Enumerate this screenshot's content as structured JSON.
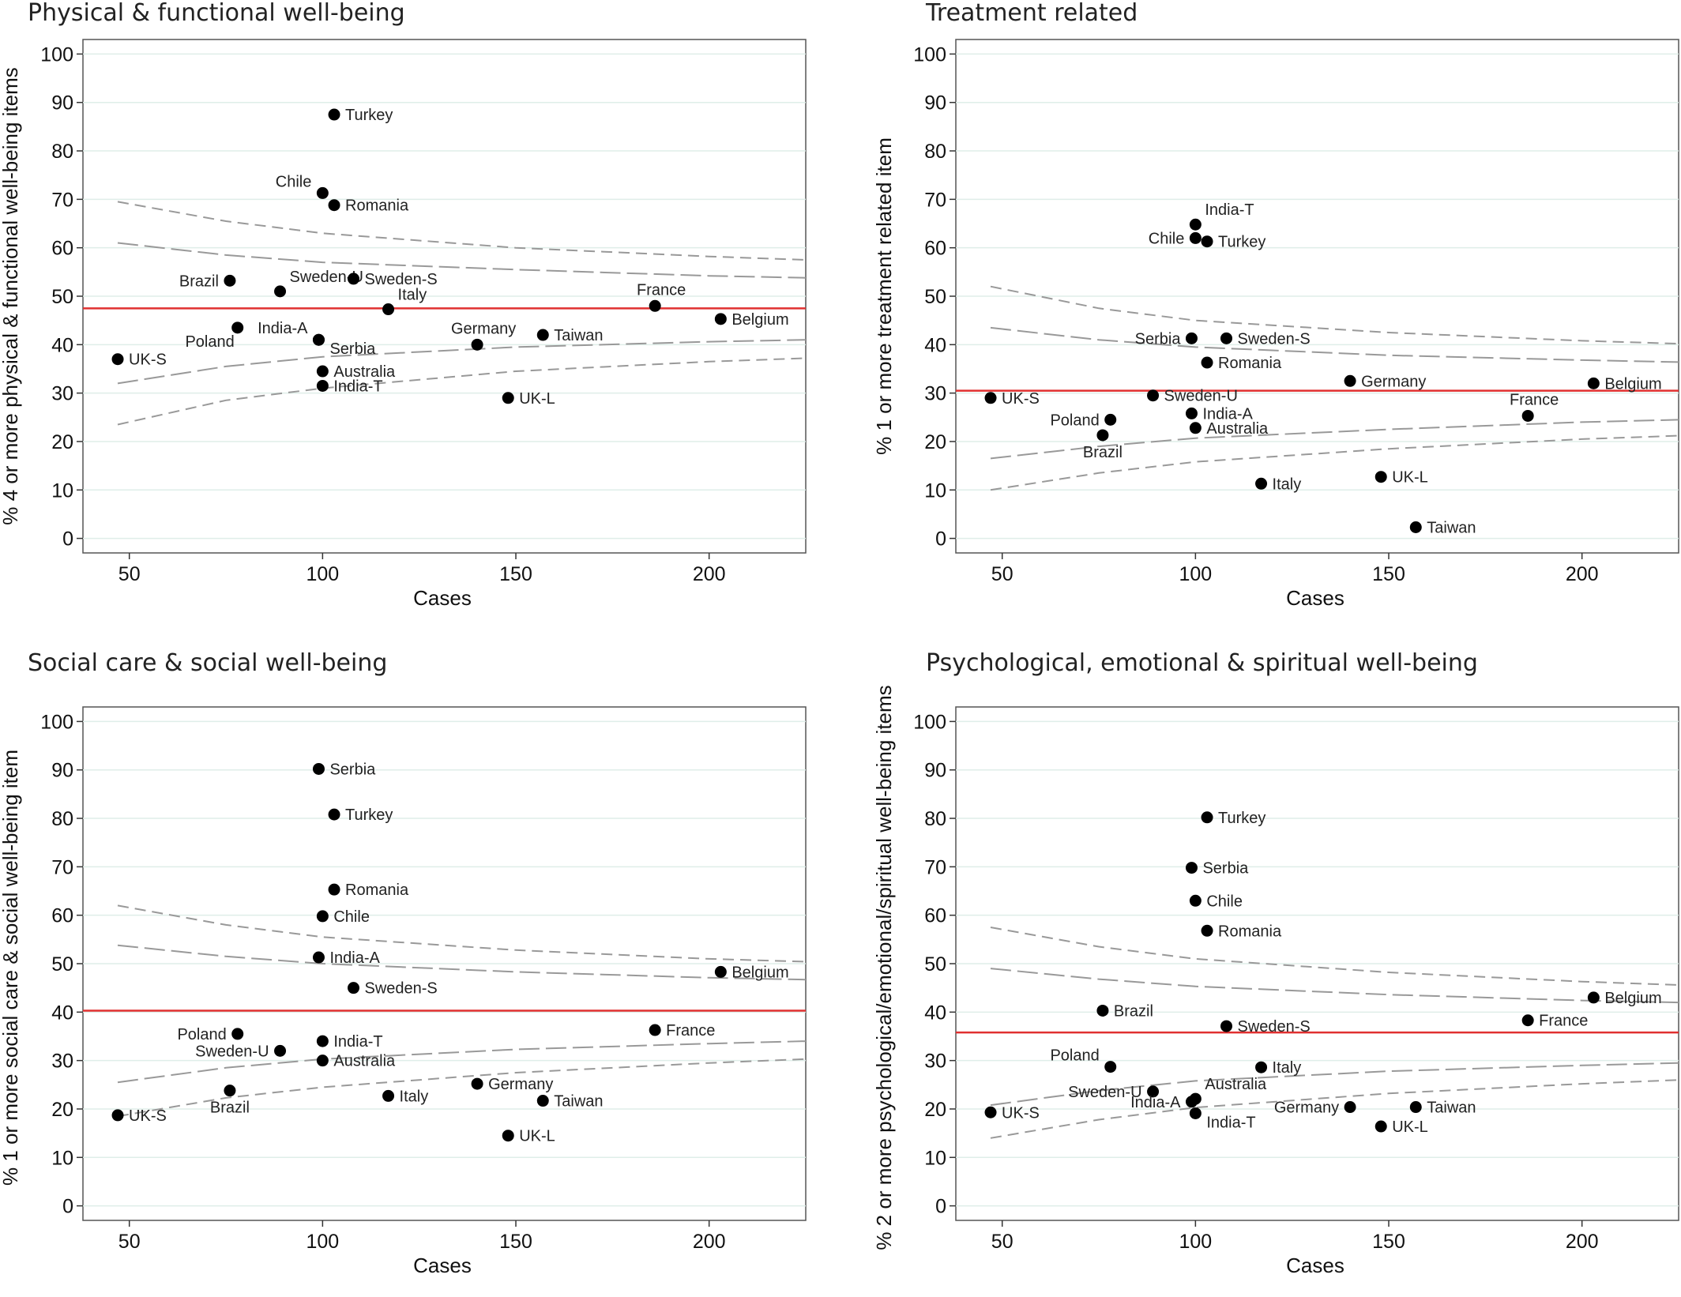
{
  "chart_data": [
    {
      "type": "scatter",
      "title": "Physical & functional well-being",
      "xlabel": "Cases",
      "ylabel": "% 4 or more physical & functional well-being items",
      "xlim": [
        38,
        225
      ],
      "ylim": [
        -3,
        103
      ],
      "xticks": [
        50,
        100,
        150,
        200
      ],
      "yticks": [
        0,
        10,
        20,
        30,
        40,
        50,
        60,
        70,
        80,
        90,
        100
      ],
      "grid": true,
      "reference_line": {
        "value": 47.5,
        "color": "#e03030"
      },
      "control_limits": {
        "inner_upper": [
          [
            47,
            61
          ],
          [
            75,
            58.5
          ],
          [
            100,
            57
          ],
          [
            150,
            55.5
          ],
          [
            200,
            54.2
          ],
          [
            225,
            53.8
          ]
        ],
        "outer_upper": [
          [
            47,
            69.5
          ],
          [
            75,
            65.5
          ],
          [
            100,
            63
          ],
          [
            150,
            60
          ],
          [
            200,
            58.2
          ],
          [
            225,
            57.5
          ]
        ],
        "inner_lower": [
          [
            47,
            32
          ],
          [
            75,
            35.5
          ],
          [
            100,
            37.5
          ],
          [
            150,
            39.5
          ],
          [
            200,
            40.6
          ],
          [
            225,
            41
          ]
        ],
        "outer_lower": [
          [
            47,
            23.5
          ],
          [
            75,
            28.5
          ],
          [
            100,
            31
          ],
          [
            150,
            34.5
          ],
          [
            200,
            36.5
          ],
          [
            225,
            37.2
          ]
        ]
      },
      "points": [
        {
          "label": "Turkey",
          "x": 103,
          "y": 87.5,
          "side": "right"
        },
        {
          "label": "Chile",
          "x": 100,
          "y": 71.3,
          "side": "above-left"
        },
        {
          "label": "Romania",
          "x": 103,
          "y": 68.8,
          "side": "right"
        },
        {
          "label": "Brazil",
          "x": 76,
          "y": 53.2,
          "side": "left"
        },
        {
          "label": "Sweden-U",
          "x": 89,
          "y": 51,
          "side": "above-right"
        },
        {
          "label": "Sweden-S",
          "x": 108,
          "y": 53.6,
          "side": "right"
        },
        {
          "label": "Italy",
          "x": 117,
          "y": 47.3,
          "side": "above-right"
        },
        {
          "label": "France",
          "x": 186,
          "y": 48,
          "side": "above"
        },
        {
          "label": "Belgium",
          "x": 203,
          "y": 45.3,
          "side": "right"
        },
        {
          "label": "India-A",
          "x": 99,
          "y": 41,
          "side": "above-left"
        },
        {
          "label": "Poland",
          "x": 78,
          "y": 43.5,
          "side": "below-left"
        },
        {
          "label": "Serbia",
          "x": 99,
          "y": 41,
          "side": "below-right"
        },
        {
          "label": "Germany",
          "x": 140,
          "y": 40,
          "side": "above"
        },
        {
          "label": "Taiwan",
          "x": 157,
          "y": 42,
          "side": "right"
        },
        {
          "label": "UK-S",
          "x": 47,
          "y": 37,
          "side": "right"
        },
        {
          "label": "Australia",
          "x": 100,
          "y": 34.5,
          "side": "right"
        },
        {
          "label": "India-T",
          "x": 100,
          "y": 31.5,
          "side": "right"
        },
        {
          "label": "UK-L",
          "x": 148,
          "y": 29,
          "side": "right"
        }
      ]
    },
    {
      "type": "scatter",
      "title": "Treatment  related",
      "xlabel": "Cases",
      "ylabel": "% 1 or more treatment related item",
      "xlim": [
        38,
        225
      ],
      "ylim": [
        -3,
        103
      ],
      "xticks": [
        50,
        100,
        150,
        200
      ],
      "yticks": [
        0,
        10,
        20,
        30,
        40,
        50,
        60,
        70,
        80,
        90,
        100
      ],
      "grid": true,
      "reference_line": {
        "value": 30.5,
        "color": "#e03030"
      },
      "control_limits": {
        "inner_upper": [
          [
            47,
            43.5
          ],
          [
            75,
            41
          ],
          [
            100,
            39.5
          ],
          [
            150,
            37.8
          ],
          [
            200,
            36.8
          ],
          [
            225,
            36.4
          ]
        ],
        "outer_upper": [
          [
            47,
            52
          ],
          [
            75,
            47.5
          ],
          [
            100,
            45
          ],
          [
            150,
            42.5
          ],
          [
            200,
            40.8
          ],
          [
            225,
            40.2
          ]
        ],
        "inner_lower": [
          [
            47,
            16.5
          ],
          [
            75,
            19
          ],
          [
            100,
            20.7
          ],
          [
            150,
            22.5
          ],
          [
            200,
            24
          ],
          [
            225,
            24.5
          ]
        ],
        "outer_lower": [
          [
            47,
            10
          ],
          [
            75,
            13.5
          ],
          [
            100,
            15.8
          ],
          [
            150,
            18.5
          ],
          [
            200,
            20.5
          ],
          [
            225,
            21.2
          ]
        ]
      },
      "points": [
        {
          "label": "India-T",
          "x": 100,
          "y": 64.8,
          "side": "above-right"
        },
        {
          "label": "Chile",
          "x": 100,
          "y": 62,
          "side": "left"
        },
        {
          "label": "Turkey",
          "x": 103,
          "y": 61.3,
          "side": "right"
        },
        {
          "label": "Serbia",
          "x": 99,
          "y": 41.3,
          "side": "left"
        },
        {
          "label": "Sweden-S",
          "x": 108,
          "y": 41.3,
          "side": "right"
        },
        {
          "label": "Romania",
          "x": 103,
          "y": 36.3,
          "side": "right"
        },
        {
          "label": "Germany",
          "x": 140,
          "y": 32.5,
          "side": "right"
        },
        {
          "label": "Belgium",
          "x": 203,
          "y": 32,
          "side": "right"
        },
        {
          "label": "UK-S",
          "x": 47,
          "y": 29,
          "side": "right"
        },
        {
          "label": "Sweden-U",
          "x": 89,
          "y": 29.5,
          "side": "right"
        },
        {
          "label": "France",
          "x": 186,
          "y": 25.3,
          "side": "above"
        },
        {
          "label": "India-A",
          "x": 99,
          "y": 25.8,
          "side": "right"
        },
        {
          "label": "Poland",
          "x": 78,
          "y": 24.5,
          "side": "left"
        },
        {
          "label": "Australia",
          "x": 100,
          "y": 22.8,
          "side": "right"
        },
        {
          "label": "Brazil",
          "x": 76,
          "y": 21.3,
          "side": "below"
        },
        {
          "label": "UK-L",
          "x": 148,
          "y": 12.7,
          "side": "right"
        },
        {
          "label": "Italy",
          "x": 117,
          "y": 11.3,
          "side": "right"
        },
        {
          "label": "Taiwan",
          "x": 157,
          "y": 2.3,
          "side": "right"
        }
      ]
    },
    {
      "type": "scatter",
      "title": "Social care & social well-being",
      "xlabel": "Cases",
      "ylabel": "% 1 or more social care & social well-being item",
      "xlim": [
        38,
        225
      ],
      "ylim": [
        -3,
        103
      ],
      "xticks": [
        50,
        100,
        150,
        200
      ],
      "yticks": [
        0,
        10,
        20,
        30,
        40,
        50,
        60,
        70,
        80,
        90,
        100
      ],
      "grid": true,
      "reference_line": {
        "value": 40.3,
        "color": "#e03030"
      },
      "control_limits": {
        "inner_upper": [
          [
            47,
            53.8
          ],
          [
            75,
            51.5
          ],
          [
            100,
            50
          ],
          [
            150,
            48.3
          ],
          [
            200,
            47.1
          ],
          [
            225,
            46.7
          ]
        ],
        "outer_upper": [
          [
            47,
            62
          ],
          [
            75,
            58
          ],
          [
            100,
            55.5
          ],
          [
            150,
            52.8
          ],
          [
            200,
            51
          ],
          [
            225,
            50.4
          ]
        ],
        "inner_lower": [
          [
            47,
            25.5
          ],
          [
            75,
            28.5
          ],
          [
            100,
            30.3
          ],
          [
            150,
            32.3
          ],
          [
            200,
            33.5
          ],
          [
            225,
            34
          ]
        ],
        "outer_lower": [
          [
            47,
            18.5
          ],
          [
            75,
            22.3
          ],
          [
            100,
            24.5
          ],
          [
            150,
            27.5
          ],
          [
            200,
            29.5
          ],
          [
            225,
            30.3
          ]
        ]
      },
      "points": [
        {
          "label": "Serbia",
          "x": 99,
          "y": 90.2,
          "side": "right"
        },
        {
          "label": "Turkey",
          "x": 103,
          "y": 80.8,
          "side": "right"
        },
        {
          "label": "Romania",
          "x": 103,
          "y": 65.3,
          "side": "right"
        },
        {
          "label": "Chile",
          "x": 100,
          "y": 59.8,
          "side": "right"
        },
        {
          "label": "India-A",
          "x": 99,
          "y": 51.3,
          "side": "right"
        },
        {
          "label": "Belgium",
          "x": 203,
          "y": 48.3,
          "side": "right"
        },
        {
          "label": "Sweden-S",
          "x": 108,
          "y": 45,
          "side": "right"
        },
        {
          "label": "Poland",
          "x": 78,
          "y": 35.5,
          "side": "left"
        },
        {
          "label": "France",
          "x": 186,
          "y": 36.3,
          "side": "right"
        },
        {
          "label": "India-T",
          "x": 100,
          "y": 34,
          "side": "right"
        },
        {
          "label": "Sweden-U",
          "x": 89,
          "y": 32,
          "side": "left"
        },
        {
          "label": "Australia",
          "x": 100,
          "y": 30,
          "side": "right"
        },
        {
          "label": "Germany",
          "x": 140,
          "y": 25.2,
          "side": "right"
        },
        {
          "label": "Brazil",
          "x": 76,
          "y": 23.8,
          "side": "below"
        },
        {
          "label": "Italy",
          "x": 117,
          "y": 22.7,
          "side": "right"
        },
        {
          "label": "Taiwan",
          "x": 157,
          "y": 21.7,
          "side": "right"
        },
        {
          "label": "UK-S",
          "x": 47,
          "y": 18.7,
          "side": "right"
        },
        {
          "label": "UK-L",
          "x": 148,
          "y": 14.5,
          "side": "right"
        }
      ]
    },
    {
      "type": "scatter",
      "title": "Psychological, emotional & spiritual well-being",
      "xlabel": "Cases",
      "ylabel": "% 2 or more psychological/emotional/spiritual well-being items",
      "xlim": [
        38,
        225
      ],
      "ylim": [
        -3,
        103
      ],
      "xticks": [
        50,
        100,
        150,
        200
      ],
      "yticks": [
        0,
        10,
        20,
        30,
        40,
        50,
        60,
        70,
        80,
        90,
        100
      ],
      "grid": true,
      "reference_line": {
        "value": 35.8,
        "color": "#e03030"
      },
      "control_limits": {
        "inner_upper": [
          [
            47,
            49
          ],
          [
            75,
            46.8
          ],
          [
            100,
            45.3
          ],
          [
            150,
            43.6
          ],
          [
            200,
            42.4
          ],
          [
            225,
            42
          ]
        ],
        "outer_upper": [
          [
            47,
            57.5
          ],
          [
            75,
            53.5
          ],
          [
            100,
            51
          ],
          [
            150,
            48.2
          ],
          [
            200,
            46.3
          ],
          [
            225,
            45.6
          ]
        ],
        "inner_lower": [
          [
            47,
            20.8
          ],
          [
            75,
            23.8
          ],
          [
            100,
            25.8
          ],
          [
            150,
            27.8
          ],
          [
            200,
            29
          ],
          [
            225,
            29.5
          ]
        ],
        "outer_lower": [
          [
            47,
            14
          ],
          [
            75,
            17.8
          ],
          [
            100,
            20.3
          ],
          [
            150,
            23.2
          ],
          [
            200,
            25.2
          ],
          [
            225,
            26
          ]
        ]
      },
      "points": [
        {
          "label": "Turkey",
          "x": 103,
          "y": 80.2,
          "side": "right"
        },
        {
          "label": "Serbia",
          "x": 99,
          "y": 69.8,
          "side": "right"
        },
        {
          "label": "Chile",
          "x": 100,
          "y": 63,
          "side": "right"
        },
        {
          "label": "Romania",
          "x": 103,
          "y": 56.8,
          "side": "right"
        },
        {
          "label": "Belgium",
          "x": 203,
          "y": 43,
          "side": "right"
        },
        {
          "label": "Brazil",
          "x": 76,
          "y": 40.3,
          "side": "right"
        },
        {
          "label": "France",
          "x": 186,
          "y": 38.3,
          "side": "right"
        },
        {
          "label": "Sweden-S",
          "x": 108,
          "y": 37.1,
          "side": "right"
        },
        {
          "label": "Poland",
          "x": 78,
          "y": 28.7,
          "side": "above-left"
        },
        {
          "label": "Italy",
          "x": 117,
          "y": 28.6,
          "side": "right"
        },
        {
          "label": "Sweden-U",
          "x": 89,
          "y": 23.6,
          "side": "left"
        },
        {
          "label": "Australia",
          "x": 100,
          "y": 22.1,
          "side": "above-right"
        },
        {
          "label": "India-A",
          "x": 99,
          "y": 21.5,
          "side": "left"
        },
        {
          "label": "Germany",
          "x": 140,
          "y": 20.4,
          "side": "left"
        },
        {
          "label": "Taiwan",
          "x": 157,
          "y": 20.4,
          "side": "right"
        },
        {
          "label": "UK-S",
          "x": 47,
          "y": 19.3,
          "side": "right"
        },
        {
          "label": "India-T",
          "x": 100,
          "y": 19.1,
          "side": "below-right"
        },
        {
          "label": "UK-L",
          "x": 148,
          "y": 16.4,
          "side": "right"
        }
      ]
    }
  ]
}
